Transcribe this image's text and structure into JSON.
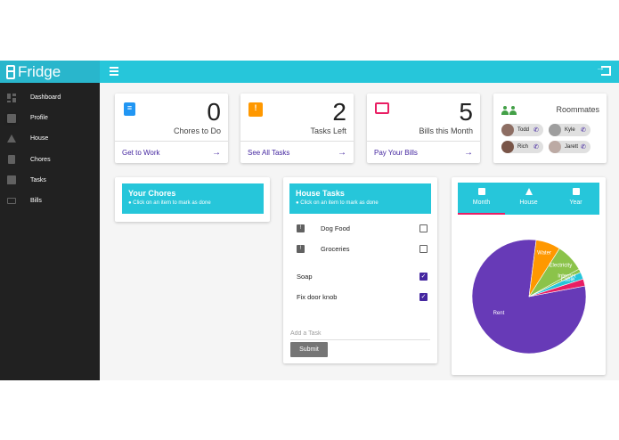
{
  "app": {
    "title": "Fridge"
  },
  "sidebar": {
    "items": [
      {
        "label": "Dashboard",
        "icon": "dashboard-icon"
      },
      {
        "label": "Profile",
        "icon": "profile-icon"
      },
      {
        "label": "House",
        "icon": "house-icon"
      },
      {
        "label": "Chores",
        "icon": "clipboard-icon"
      },
      {
        "label": "Tasks",
        "icon": "feedback-icon"
      },
      {
        "label": "Bills",
        "icon": "credit-card-icon"
      }
    ]
  },
  "stats": [
    {
      "number": "0",
      "label": "Chores to Do",
      "link": "Get to Work",
      "icon": "clipboard-icon",
      "color": "#2196f3"
    },
    {
      "number": "2",
      "label": "Tasks Left",
      "link": "See All Tasks",
      "icon": "feedback-icon",
      "color": "#ff9800"
    },
    {
      "number": "5",
      "label": "Bills this Month",
      "link": "Pay Your Bills",
      "icon": "credit-card-icon",
      "color": "#e91e63"
    }
  ],
  "roommates": {
    "title": "Roommates",
    "people": [
      "Todd",
      "Kyle",
      "Rich",
      "Jarett"
    ]
  },
  "your_chores": {
    "title": "Your Chores",
    "subtitle": "Click on an item to mark as done"
  },
  "house_tasks": {
    "title": "House Tasks",
    "subtitle": "Click on an item to mark as done",
    "tasks": [
      {
        "label": "Dog Food",
        "checked": false
      },
      {
        "label": "Groceries",
        "checked": false
      },
      {
        "label": "Soap",
        "checked": true
      },
      {
        "label": "Fix door knob",
        "checked": true
      }
    ],
    "input_placeholder": "Add a Task",
    "submit_label": "Submit"
  },
  "bills_tabs": [
    "Month",
    "House",
    "Year"
  ],
  "chart_data": {
    "type": "pie",
    "slices": [
      {
        "label": "Rent",
        "value": 80,
        "color": "#673ab7"
      },
      {
        "label": "Water",
        "value": 7,
        "color": "#ff9800"
      },
      {
        "label": "Electricity",
        "value": 8,
        "color": "#8bc34a"
      },
      {
        "label": "Internet",
        "value": 1,
        "color": "#8bc34a"
      },
      {
        "label": "Cable",
        "value": 2,
        "color": "#26c6da"
      },
      {
        "label": "",
        "value": 2,
        "color": "#e91e63"
      }
    ]
  },
  "colors": {
    "accent": "#26c6da",
    "primary": "#4527a0",
    "sidebar": "#212121"
  }
}
